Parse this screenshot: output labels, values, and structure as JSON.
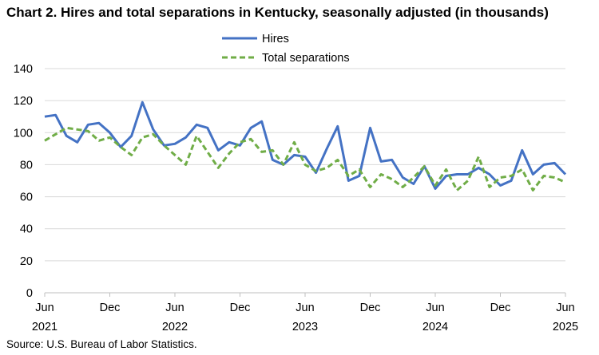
{
  "title": "Chart 2. Hires and total separations in Kentucky, seasonally adjusted (in thousands)",
  "source": "Source: U.S. Bureau of Labor Statistics.",
  "chart_data": {
    "type": "line",
    "title": "Chart 2. Hires and total separations in Kentucky, seasonally adjusted (in thousands)",
    "xlabel": "",
    "ylabel": "",
    "ylim": [
      0,
      140
    ],
    "yticks": [
      0,
      20,
      40,
      60,
      80,
      100,
      120,
      140
    ],
    "grid": true,
    "legend_position": "top-center",
    "x": [
      "2021-06",
      "2021-07",
      "2021-08",
      "2021-09",
      "2021-10",
      "2021-11",
      "2021-12",
      "2022-01",
      "2022-02",
      "2022-03",
      "2022-04",
      "2022-05",
      "2022-06",
      "2022-07",
      "2022-08",
      "2022-09",
      "2022-10",
      "2022-11",
      "2022-12",
      "2023-01",
      "2023-02",
      "2023-03",
      "2023-04",
      "2023-05",
      "2023-06",
      "2023-07",
      "2023-08",
      "2023-09",
      "2023-10",
      "2023-11",
      "2023-12",
      "2024-01",
      "2024-02",
      "2024-03",
      "2024-04",
      "2024-05",
      "2024-06",
      "2024-07",
      "2024-08",
      "2024-09",
      "2024-10",
      "2024-11",
      "2024-12",
      "2025-01",
      "2025-02",
      "2025-03",
      "2025-04",
      "2025-05",
      "2025-06"
    ],
    "xtick_labels": [
      {
        "month": "Jun",
        "year": "2021"
      },
      {
        "month": "Dec",
        "year": ""
      },
      {
        "month": "Jun",
        "year": "2022"
      },
      {
        "month": "Dec",
        "year": ""
      },
      {
        "month": "Jun",
        "year": "2023"
      },
      {
        "month": "Dec",
        "year": ""
      },
      {
        "month": "Jun",
        "year": "2024"
      },
      {
        "month": "Dec",
        "year": ""
      },
      {
        "month": "Jun",
        "year": "2025"
      }
    ],
    "series": [
      {
        "name": "Hires",
        "color": "#4472C4",
        "style": "solid",
        "values": [
          110,
          111,
          98,
          94,
          105,
          106,
          100,
          91,
          98,
          119,
          102,
          92,
          93,
          97,
          105,
          103,
          89,
          94,
          92,
          103,
          107,
          83,
          80,
          86,
          85,
          75,
          90,
          104,
          70,
          73,
          103,
          82,
          83,
          72,
          68,
          79,
          65,
          73,
          74,
          74,
          78,
          74,
          67,
          70,
          89,
          74,
          80,
          81,
          74
        ]
      },
      {
        "name": "Total separations",
        "color": "#70AD47",
        "style": "dashed",
        "values": [
          95,
          99,
          103,
          102,
          101,
          95,
          97,
          91,
          86,
          97,
          99,
          92,
          86,
          80,
          98,
          88,
          78,
          87,
          94,
          96,
          88,
          89,
          80,
          94,
          80,
          76,
          78,
          83,
          73,
          77,
          66,
          74,
          71,
          66,
          72,
          79,
          67,
          77,
          64,
          70,
          85,
          66,
          72,
          73,
          77,
          64,
          73,
          72,
          69
        ]
      }
    ]
  }
}
